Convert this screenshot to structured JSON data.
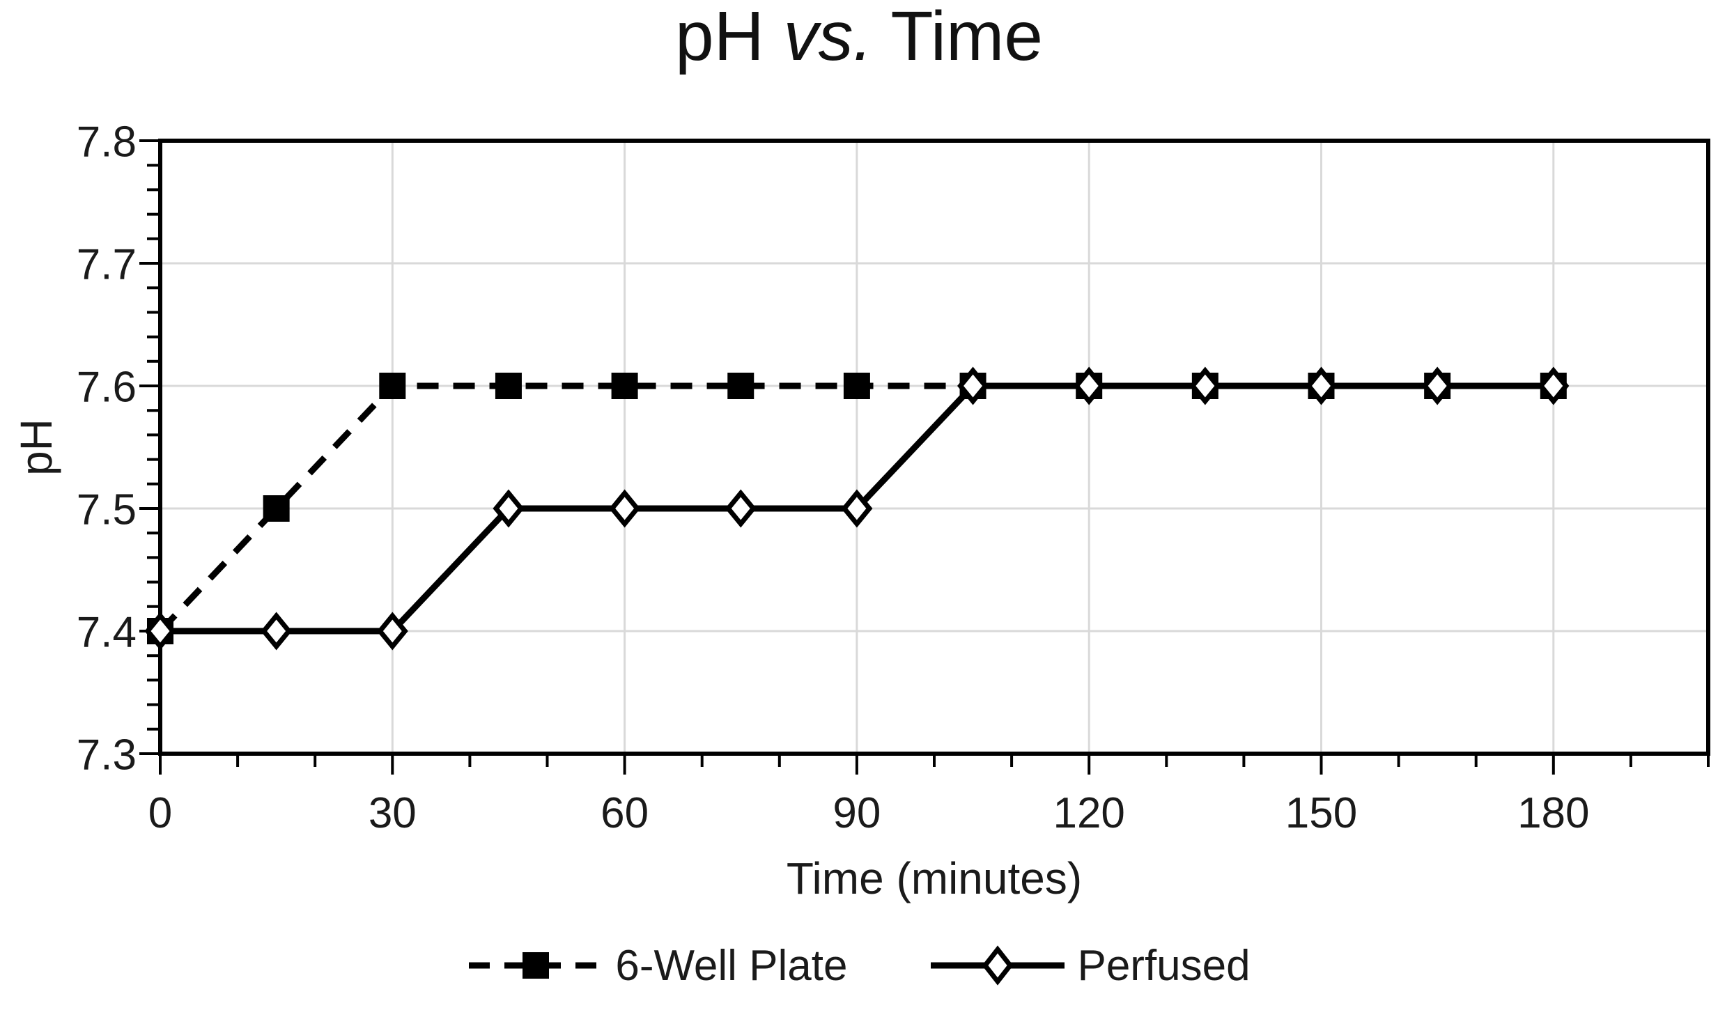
{
  "title": {
    "prefix": "pH ",
    "italic": "vs.",
    "suffix": " Time"
  },
  "chart_data": {
    "type": "line",
    "title": "pH vs. Time",
    "xlabel": "Time (minutes)",
    "ylabel": "pH",
    "xlim": [
      0,
      200
    ],
    "ylim": [
      7.3,
      7.8
    ],
    "grid": {
      "show": true,
      "color": "#d9d9d9"
    },
    "axis_color": "#000000",
    "line_color": "#000000",
    "legend_position": "bottom-center",
    "x": [
      0,
      15,
      30,
      45,
      60,
      75,
      90,
      105,
      120,
      135,
      150,
      165,
      180
    ],
    "series": [
      {
        "name": "6-Well Plate",
        "line": "dashed",
        "marker": "filled-square",
        "values": [
          7.4,
          7.5,
          7.6,
          7.6,
          7.6,
          7.6,
          7.6,
          7.6,
          7.6,
          7.6,
          7.6,
          7.6,
          7.6
        ]
      },
      {
        "name": "Perfused",
        "line": "solid",
        "marker": "open-diamond",
        "values": [
          7.4,
          7.4,
          7.4,
          7.5,
          7.5,
          7.5,
          7.5,
          7.6,
          7.6,
          7.6,
          7.6,
          7.6,
          7.6
        ]
      }
    ],
    "x_major_ticks": {
      "values": [
        0,
        30,
        60,
        90,
        120,
        150,
        180
      ],
      "labels": [
        "0",
        "30",
        "60",
        "90",
        "120",
        "150",
        "180"
      ]
    },
    "x_minor_step": 10,
    "y_major_ticks": {
      "values": [
        7.3,
        7.4,
        7.5,
        7.6,
        7.7,
        7.8
      ],
      "labels": [
        "7.3",
        "7.4",
        "7.5",
        "7.6",
        "7.7",
        "7.8"
      ]
    },
    "y_minor_step": 0.02
  }
}
